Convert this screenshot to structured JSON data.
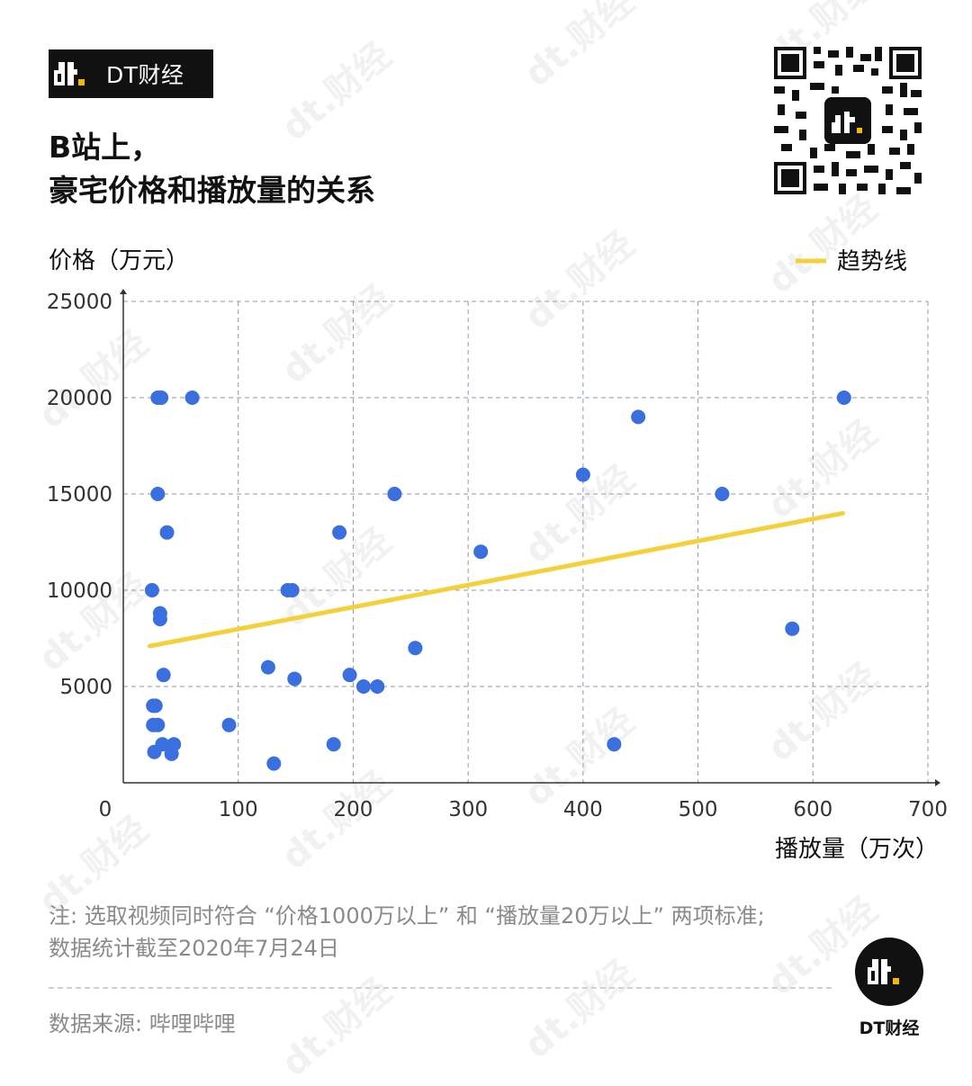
{
  "brand": {
    "name": "DT财经"
  },
  "title": {
    "line1": "B站上，",
    "line2": "豪宅价格和播放量的关系"
  },
  "note": {
    "line1": "注: 选取视频同时符合 “价格1000万以上” 和 “播放量20万以上” 两项标准;",
    "line2": "数据统计截至2020年7月24日"
  },
  "source": "数据来源: 哔哩哔哩",
  "footer": {
    "name": "DT财经"
  },
  "colors": {
    "point": "#3a6fe0",
    "trend": "#f5d03d",
    "grid": "#8a9aaa",
    "brand_accent": "#f5b800"
  },
  "chart_data": {
    "type": "scatter",
    "title": "",
    "xlabel": "播放量（万次）",
    "ylabel": "价格（万元）",
    "xlim": [
      0,
      700
    ],
    "ylim": [
      0,
      25000
    ],
    "x_ticks": [
      0,
      100,
      200,
      300,
      400,
      500,
      600,
      700
    ],
    "y_ticks": [
      5000,
      10000,
      15000,
      20000,
      25000
    ],
    "grid": true,
    "legend_position": "top-right",
    "points": [
      {
        "x": 30,
        "y": 20000
      },
      {
        "x": 33,
        "y": 20000
      },
      {
        "x": 60,
        "y": 20000
      },
      {
        "x": 30,
        "y": 15000
      },
      {
        "x": 38,
        "y": 13000
      },
      {
        "x": 25,
        "y": 10000
      },
      {
        "x": 32,
        "y": 8800
      },
      {
        "x": 32,
        "y": 8500
      },
      {
        "x": 35,
        "y": 5600
      },
      {
        "x": 26,
        "y": 4000
      },
      {
        "x": 28,
        "y": 4000
      },
      {
        "x": 26,
        "y": 3000
      },
      {
        "x": 30,
        "y": 3000
      },
      {
        "x": 34,
        "y": 2000
      },
      {
        "x": 44,
        "y": 2000
      },
      {
        "x": 27,
        "y": 1600
      },
      {
        "x": 42,
        "y": 1500
      },
      {
        "x": 92,
        "y": 3000
      },
      {
        "x": 126,
        "y": 6000
      },
      {
        "x": 131,
        "y": 1000
      },
      {
        "x": 143,
        "y": 10000
      },
      {
        "x": 147,
        "y": 10000
      },
      {
        "x": 149,
        "y": 5400
      },
      {
        "x": 183,
        "y": 2000
      },
      {
        "x": 188,
        "y": 13000
      },
      {
        "x": 197,
        "y": 5600
      },
      {
        "x": 209,
        "y": 5000
      },
      {
        "x": 221,
        "y": 5000
      },
      {
        "x": 236,
        "y": 15000
      },
      {
        "x": 254,
        "y": 7000
      },
      {
        "x": 311,
        "y": 12000
      },
      {
        "x": 400,
        "y": 16000
      },
      {
        "x": 427,
        "y": 2000
      },
      {
        "x": 448,
        "y": 19000
      },
      {
        "x": 521,
        "y": 15000
      },
      {
        "x": 582,
        "y": 8000
      },
      {
        "x": 627,
        "y": 20000
      }
    ],
    "trendline": {
      "name": "趋势线",
      "from": {
        "x": 23,
        "y": 7100
      },
      "to": {
        "x": 626,
        "y": 14000
      }
    }
  }
}
